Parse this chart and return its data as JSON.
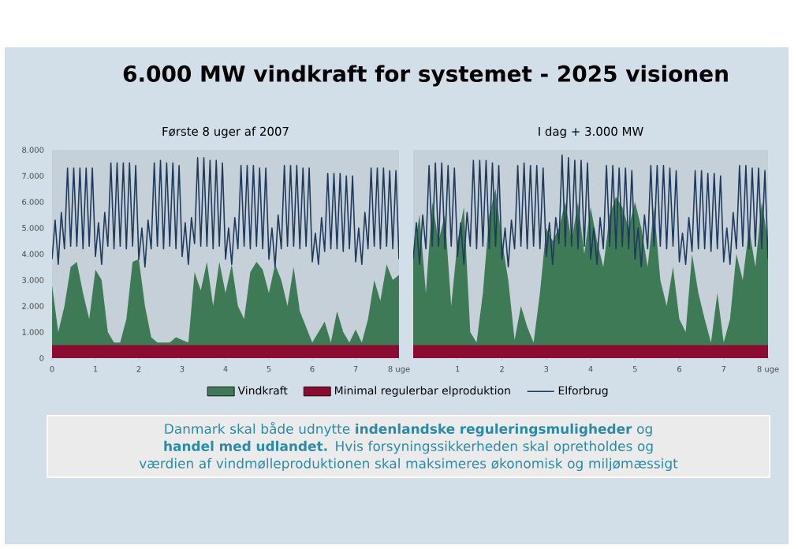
{
  "chart_data": [
    {
      "type": "area",
      "title": "Første 8 uger af 2007",
      "legend": "bottom",
      "xlim": [
        0,
        8
      ],
      "ylim": [
        0,
        8000
      ],
      "xticks": [
        0,
        1,
        2,
        3,
        4,
        5,
        6,
        7,
        {
          "value": 8,
          "label": "8 uge"
        }
      ],
      "yticks": [
        0,
        {
          "value": 1000,
          "label": "1.000"
        },
        {
          "value": 2000,
          "label": "2.000"
        },
        {
          "value": 3000,
          "label": "3.000"
        },
        {
          "value": 4000,
          "label": "4.000"
        },
        {
          "value": 5000,
          "label": "5.000"
        },
        {
          "value": 6000,
          "label": "6.000"
        },
        {
          "value": 7000,
          "label": "7.000"
        },
        {
          "value": 8000,
          "label": "8.000"
        }
      ],
      "annotations": [
        "6.000 MW vindkraft for systemet - 2025 visionen",
        "Danmark skal både udnytte **indenlandske reguleringsmuligheder** og **handel med udlandet.**  Hvis forsyningssikkerheden skal opretholdes og værdien af vindmølleproduktionen skal maksimeres økonomisk og miljømæssigt"
      ],
      "series": [
        {
          "name": "Vindkraft",
          "color": "#3f7a56",
          "x": [
            0,
            0.143,
            0.286,
            0.429,
            0.571,
            0.714,
            0.857,
            1,
            1.143,
            1.286,
            1.429,
            1.571,
            1.714,
            1.857,
            2,
            2.143,
            2.286,
            2.429,
            2.571,
            2.714,
            2.857,
            3,
            3.143,
            3.286,
            3.429,
            3.571,
            3.714,
            3.857,
            4,
            4.143,
            4.286,
            4.429,
            4.571,
            4.714,
            4.857,
            5,
            5.143,
            5.286,
            5.429,
            5.571,
            5.714,
            5.857,
            6,
            6.143,
            6.286,
            6.429,
            6.571,
            6.714,
            6.857,
            7,
            7.143,
            7.286,
            7.429,
            7.571,
            7.714,
            7.857,
            8
          ],
          "values": [
            2800,
            1000,
            2000,
            3500,
            3700,
            2500,
            1500,
            3400,
            3000,
            1000,
            600,
            600,
            1500,
            3700,
            3800,
            2000,
            800,
            600,
            600,
            600,
            800,
            700,
            600,
            3300,
            2600,
            3700,
            2000,
            3700,
            2500,
            3600,
            2000,
            1500,
            3300,
            3700,
            3400,
            2500,
            3600,
            3000,
            2000,
            3500,
            1800,
            1200,
            600,
            1000,
            1400,
            600,
            1800,
            1000,
            600,
            1100,
            600,
            1500,
            3000,
            2200,
            3600,
            3000,
            3200
          ]
        },
        {
          "name": "Minimal regulerbar elproduktion",
          "color": "#8c0b30",
          "x": [
            0,
            8
          ],
          "values": [
            500,
            500
          ]
        },
        {
          "name": "Elforbrug",
          "type": "line",
          "color": "#1f3a5c",
          "x": [
            0,
            0.071,
            0.143,
            0.214,
            0.286,
            0.357,
            0.429,
            0.5,
            0.571,
            0.643,
            0.714,
            0.786,
            0.857,
            0.929,
            1,
            1.071,
            1.143,
            1.214,
            1.286,
            1.357,
            1.429,
            1.5,
            1.571,
            1.643,
            1.714,
            1.786,
            1.857,
            1.929,
            2,
            2.071,
            2.143,
            2.214,
            2.286,
            2.357,
            2.429,
            2.5,
            2.571,
            2.643,
            2.714,
            2.786,
            2.857,
            2.929,
            3,
            3.071,
            3.143,
            3.214,
            3.286,
            3.357,
            3.429,
            3.5,
            3.571,
            3.643,
            3.714,
            3.786,
            3.857,
            3.929,
            4,
            4.071,
            4.143,
            4.214,
            4.286,
            4.357,
            4.429,
            4.5,
            4.571,
            4.643,
            4.714,
            4.786,
            4.857,
            4.929,
            5,
            5.071,
            5.143,
            5.214,
            5.286,
            5.357,
            5.429,
            5.5,
            5.571,
            5.643,
            5.714,
            5.786,
            5.857,
            5.929,
            6,
            6.071,
            6.143,
            6.214,
            6.286,
            6.357,
            6.429,
            6.5,
            6.571,
            6.643,
            6.714,
            6.786,
            6.857,
            6.929,
            7,
            7.071,
            7.143,
            7.214,
            7.286,
            7.357,
            7.429,
            7.5,
            7.571,
            7.643,
            7.714,
            7.786,
            7.857,
            7.929,
            8
          ],
          "values": [
            3800,
            5300,
            3600,
            5600,
            4200,
            7300,
            4300,
            7300,
            4300,
            7300,
            4200,
            7300,
            4300,
            7300,
            3900,
            5200,
            3600,
            5600,
            4300,
            7500,
            4200,
            7500,
            4300,
            7500,
            4200,
            7500,
            4300,
            7400,
            3800,
            5000,
            3500,
            5300,
            4200,
            7500,
            4300,
            7600,
            4200,
            7500,
            4300,
            7500,
            4200,
            7400,
            3900,
            5200,
            3600,
            5400,
            4400,
            7700,
            4300,
            7700,
            4300,
            7600,
            4200,
            7600,
            4300,
            7500,
            3800,
            5000,
            3600,
            5400,
            4200,
            7400,
            4300,
            7400,
            4200,
            7400,
            4300,
            7300,
            4200,
            7300,
            3800,
            5000,
            3500,
            5500,
            4200,
            7400,
            4300,
            7400,
            4300,
            7400,
            4200,
            7300,
            4300,
            7300,
            3700,
            4800,
            3600,
            5400,
            4100,
            7100,
            4200,
            7100,
            4200,
            7100,
            4100,
            7000,
            4200,
            7000,
            3700,
            5000,
            3600,
            5600,
            4200,
            7300,
            4300,
            7300,
            4200,
            7300,
            4300,
            7200,
            4200,
            7200,
            3800
          ]
        }
      ]
    },
    {
      "type": "area",
      "title": "I dag + 3.000 MW",
      "tick_labels": "x",
      "xlim": [
        0,
        8
      ],
      "ylim": [
        0,
        8000
      ],
      "xticks": [
        1,
        2,
        3,
        4,
        5,
        6,
        7,
        {
          "value": 8,
          "label": "8 uge"
        }
      ],
      "yticks": [
        0,
        1000,
        2000,
        3000,
        4000,
        5000,
        6000,
        7000,
        8000
      ],
      "series": [
        {
          "color": "#3f7a56",
          "x": [
            0,
            0.143,
            0.286,
            0.429,
            0.571,
            0.714,
            0.857,
            1,
            1.143,
            1.286,
            1.429,
            1.571,
            1.714,
            1.857,
            2,
            2.143,
            2.286,
            2.429,
            2.571,
            2.714,
            2.857,
            3,
            3.143,
            3.286,
            3.429,
            3.571,
            3.714,
            3.857,
            4,
            4.143,
            4.286,
            4.429,
            4.571,
            4.714,
            4.857,
            5,
            5.143,
            5.286,
            5.429,
            5.571,
            5.714,
            5.857,
            6,
            6.143,
            6.286,
            6.429,
            6.571,
            6.714,
            6.857,
            7,
            7.143,
            7.286,
            7.429,
            7.571,
            7.714,
            7.857,
            8
          ],
          "values": [
            4000,
            5500,
            2500,
            6000,
            4500,
            5500,
            2000,
            4500,
            5800,
            1000,
            600,
            2500,
            5500,
            6500,
            4500,
            3000,
            700,
            2000,
            1200,
            600,
            2500,
            5000,
            4500,
            5000,
            6000,
            4500,
            6000,
            4000,
            5800,
            4500,
            3500,
            5500,
            6200,
            5800,
            5000,
            6000,
            5000,
            3500,
            5800,
            3000,
            2000,
            3500,
            1500,
            1000,
            4000,
            2500,
            1500,
            600,
            2500,
            600,
            1500,
            4000,
            3000,
            5000,
            3500,
            6000,
            4500
          ]
        },
        {
          "color": "#8c0b30",
          "x": [
            0,
            8
          ],
          "values": [
            500,
            500
          ]
        },
        {
          "type": "line",
          "color": "#1f3a5c",
          "x": [
            0,
            0.071,
            0.143,
            0.214,
            0.286,
            0.357,
            0.429,
            0.5,
            0.571,
            0.643,
            0.714,
            0.786,
            0.857,
            0.929,
            1,
            1.071,
            1.143,
            1.214,
            1.286,
            1.357,
            1.429,
            1.5,
            1.571,
            1.643,
            1.714,
            1.786,
            1.857,
            1.929,
            2,
            2.071,
            2.143,
            2.214,
            2.286,
            2.357,
            2.429,
            2.5,
            2.571,
            2.643,
            2.714,
            2.786,
            2.857,
            2.929,
            3,
            3.071,
            3.143,
            3.214,
            3.286,
            3.357,
            3.429,
            3.5,
            3.571,
            3.643,
            3.714,
            3.786,
            3.857,
            3.929,
            4,
            4.071,
            4.143,
            4.214,
            4.286,
            4.357,
            4.429,
            4.5,
            4.571,
            4.643,
            4.714,
            4.786,
            4.857,
            4.929,
            5,
            5.071,
            5.143,
            5.214,
            5.286,
            5.357,
            5.429,
            5.5,
            5.571,
            5.643,
            5.714,
            5.786,
            5.857,
            5.929,
            6,
            6.071,
            6.143,
            6.214,
            6.286,
            6.357,
            6.429,
            6.5,
            6.571,
            6.643,
            6.714,
            6.786,
            6.857,
            6.929,
            7,
            7.071,
            7.143,
            7.214,
            7.286,
            7.357,
            7.429,
            7.5,
            7.571,
            7.643,
            7.714,
            7.786,
            7.857,
            7.929,
            8
          ],
          "values": [
            3800,
            5200,
            3600,
            5500,
            4200,
            7400,
            4300,
            7500,
            4300,
            7500,
            4200,
            7400,
            4300,
            7300,
            3900,
            5200,
            3600,
            5600,
            4300,
            7600,
            4200,
            7600,
            4300,
            7600,
            4200,
            7500,
            4300,
            7400,
            3800,
            5000,
            3500,
            5300,
            4200,
            7400,
            4300,
            7500,
            4200,
            7400,
            4300,
            7400,
            4200,
            7300,
            3900,
            5200,
            3600,
            5400,
            4400,
            7800,
            4300,
            7700,
            4300,
            7600,
            4200,
            7600,
            4300,
            7500,
            3800,
            5000,
            3600,
            5400,
            4200,
            7400,
            4300,
            7400,
            4200,
            7300,
            4300,
            7300,
            4200,
            7200,
            3800,
            5000,
            3500,
            5500,
            4200,
            7400,
            4300,
            7400,
            4300,
            7400,
            4200,
            7300,
            4300,
            7200,
            3700,
            4800,
            3600,
            5400,
            4100,
            7200,
            4200,
            7200,
            4200,
            7100,
            4100,
            7100,
            4200,
            7000,
            3700,
            5000,
            3600,
            5600,
            4200,
            7400,
            4300,
            7400,
            4200,
            7300,
            4300,
            7300,
            4200,
            7200,
            3800
          ]
        }
      ]
    }
  ]
}
